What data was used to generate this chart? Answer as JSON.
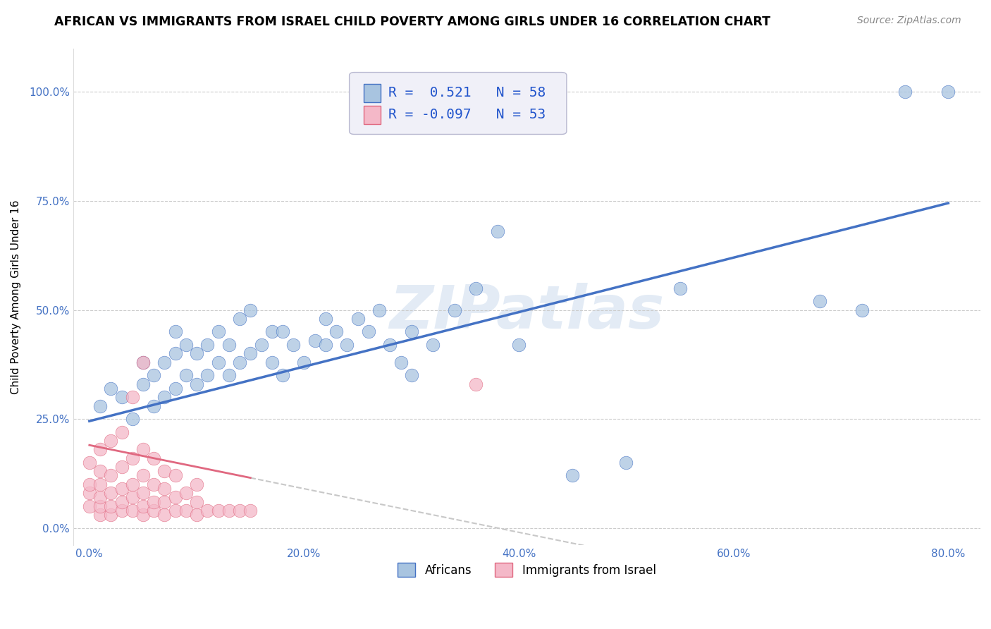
{
  "title": "AFRICAN VS IMMIGRANTS FROM ISRAEL CHILD POVERTY AMONG GIRLS UNDER 16 CORRELATION CHART",
  "source": "Source: ZipAtlas.com",
  "ylabel": "Child Poverty Among Girls Under 16",
  "xlabel_ticks": [
    "0.0%",
    "20.0%",
    "40.0%",
    "60.0%",
    "80.0%"
  ],
  "xlabel_vals": [
    0.0,
    0.2,
    0.4,
    0.6,
    0.8
  ],
  "ylabel_ticks": [
    "0.0%",
    "25.0%",
    "50.0%",
    "75.0%",
    "100.0%"
  ],
  "ylabel_vals": [
    0.0,
    0.25,
    0.5,
    0.75,
    1.0
  ],
  "xlim": [
    -0.015,
    0.83
  ],
  "ylim": [
    -0.04,
    1.1
  ],
  "africans_R": 0.521,
  "africans_N": 58,
  "israel_R": -0.097,
  "israel_N": 53,
  "africans_color": "#a8c4e0",
  "israel_color": "#f4b8c8",
  "africans_line_color": "#4472c4",
  "israel_line_color": "#e06880",
  "israel_dash_color": "#c8c8c8",
  "africans_x": [
    0.01,
    0.02,
    0.03,
    0.04,
    0.05,
    0.05,
    0.06,
    0.06,
    0.07,
    0.07,
    0.08,
    0.08,
    0.08,
    0.09,
    0.09,
    0.1,
    0.1,
    0.11,
    0.11,
    0.12,
    0.12,
    0.13,
    0.13,
    0.14,
    0.14,
    0.15,
    0.15,
    0.16,
    0.17,
    0.17,
    0.18,
    0.18,
    0.19,
    0.2,
    0.21,
    0.22,
    0.22,
    0.23,
    0.24,
    0.25,
    0.26,
    0.27,
    0.28,
    0.29,
    0.3,
    0.3,
    0.32,
    0.34,
    0.36,
    0.38,
    0.4,
    0.45,
    0.5,
    0.55,
    0.68,
    0.72,
    0.76,
    0.8
  ],
  "africans_y": [
    0.28,
    0.32,
    0.3,
    0.25,
    0.33,
    0.38,
    0.28,
    0.35,
    0.3,
    0.38,
    0.32,
    0.4,
    0.45,
    0.35,
    0.42,
    0.33,
    0.4,
    0.35,
    0.42,
    0.38,
    0.45,
    0.35,
    0.42,
    0.38,
    0.48,
    0.4,
    0.5,
    0.42,
    0.38,
    0.45,
    0.35,
    0.45,
    0.42,
    0.38,
    0.43,
    0.42,
    0.48,
    0.45,
    0.42,
    0.48,
    0.45,
    0.5,
    0.42,
    0.38,
    0.35,
    0.45,
    0.42,
    0.5,
    0.55,
    0.68,
    0.42,
    0.12,
    0.15,
    0.55,
    0.52,
    0.5,
    1.0,
    1.0
  ],
  "israel_x": [
    0.0,
    0.0,
    0.0,
    0.0,
    0.01,
    0.01,
    0.01,
    0.01,
    0.01,
    0.01,
    0.02,
    0.02,
    0.02,
    0.02,
    0.02,
    0.03,
    0.03,
    0.03,
    0.03,
    0.03,
    0.04,
    0.04,
    0.04,
    0.04,
    0.05,
    0.05,
    0.05,
    0.05,
    0.05,
    0.06,
    0.06,
    0.06,
    0.06,
    0.07,
    0.07,
    0.07,
    0.07,
    0.08,
    0.08,
    0.08,
    0.09,
    0.09,
    0.1,
    0.1,
    0.1,
    0.11,
    0.12,
    0.13,
    0.14,
    0.15,
    0.04,
    0.05,
    0.36
  ],
  "israel_y": [
    0.05,
    0.08,
    0.1,
    0.15,
    0.03,
    0.05,
    0.07,
    0.1,
    0.13,
    0.18,
    0.03,
    0.05,
    0.08,
    0.12,
    0.2,
    0.04,
    0.06,
    0.09,
    0.14,
    0.22,
    0.04,
    0.07,
    0.1,
    0.16,
    0.03,
    0.05,
    0.08,
    0.12,
    0.18,
    0.04,
    0.06,
    0.1,
    0.16,
    0.03,
    0.06,
    0.09,
    0.13,
    0.04,
    0.07,
    0.12,
    0.04,
    0.08,
    0.03,
    0.06,
    0.1,
    0.04,
    0.04,
    0.04,
    0.04,
    0.04,
    0.3,
    0.38,
    0.33
  ],
  "watermark": "ZIPatlas",
  "title_fontsize": 12.5,
  "label_fontsize": 11,
  "tick_fontsize": 11,
  "source_fontsize": 10,
  "legend_fontsize": 14
}
